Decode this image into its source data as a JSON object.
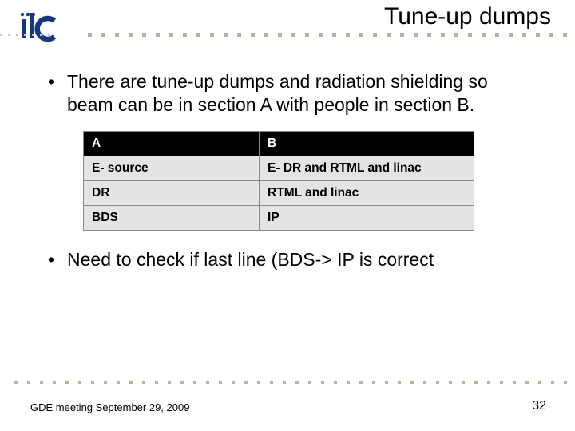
{
  "title": "Tune-up dumps",
  "logo": {
    "color": "#14377d",
    "dot_colors": [
      "#14377d",
      "#14377d",
      "#8a3a24"
    ]
  },
  "bullets": {
    "b1": "There are tune-up dumps and radiation shielding so beam can be in section A with people in section B.",
    "b2": "Need to check if last line (BDS-> IP is correct"
  },
  "table": {
    "headers": {
      "a": "A",
      "b": "B"
    },
    "rows": [
      {
        "a": "E- source",
        "b": "E- DR and RTML and linac"
      },
      {
        "a": "DR",
        "b": "RTML and linac"
      },
      {
        "a": "BDS",
        "b": "IP"
      }
    ]
  },
  "footer": {
    "left": "GDE meeting September 29, 2009",
    "page": "32"
  },
  "colors": {
    "header_bg": "#000000",
    "header_fg": "#ffffff",
    "cell_bg": "#e4e4e4",
    "dot": "#b5b2a2"
  }
}
